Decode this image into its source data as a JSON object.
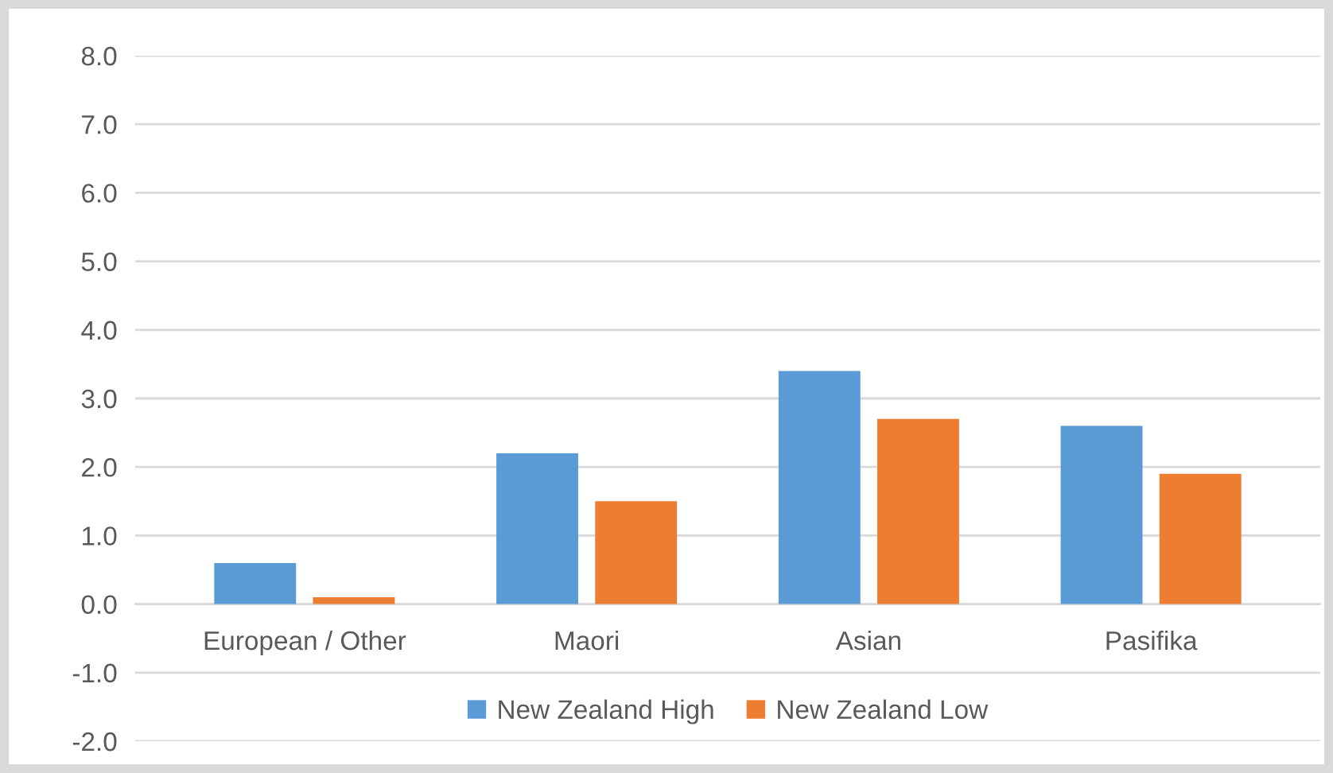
{
  "chart_data": {
    "type": "bar",
    "categories": [
      "European / Other",
      "Maori",
      "Asian",
      "Pasifika"
    ],
    "series": [
      {
        "name": "New Zealand High",
        "color": "#5b9bd5",
        "values": [
          0.6,
          2.2,
          3.4,
          2.6
        ]
      },
      {
        "name": "New Zealand Low",
        "color": "#ed7d31",
        "values": [
          0.1,
          1.5,
          2.7,
          1.9
        ]
      }
    ],
    "ylim": [
      -2,
      8
    ],
    "yticks": [
      {
        "value": -2,
        "label": "-2.0"
      },
      {
        "value": -1,
        "label": "-1.0"
      },
      {
        "value": 0,
        "label": "0.0"
      },
      {
        "value": 1,
        "label": "1.0"
      },
      {
        "value": 2,
        "label": "2.0"
      },
      {
        "value": 3,
        "label": "3.0"
      },
      {
        "value": 4,
        "label": "4.0"
      },
      {
        "value": 5,
        "label": "5.0"
      },
      {
        "value": 6,
        "label": "6.0"
      },
      {
        "value": 7,
        "label": "7.0"
      },
      {
        "value": 8,
        "label": "8.0"
      }
    ],
    "grid": "y",
    "legend": "bottom"
  }
}
